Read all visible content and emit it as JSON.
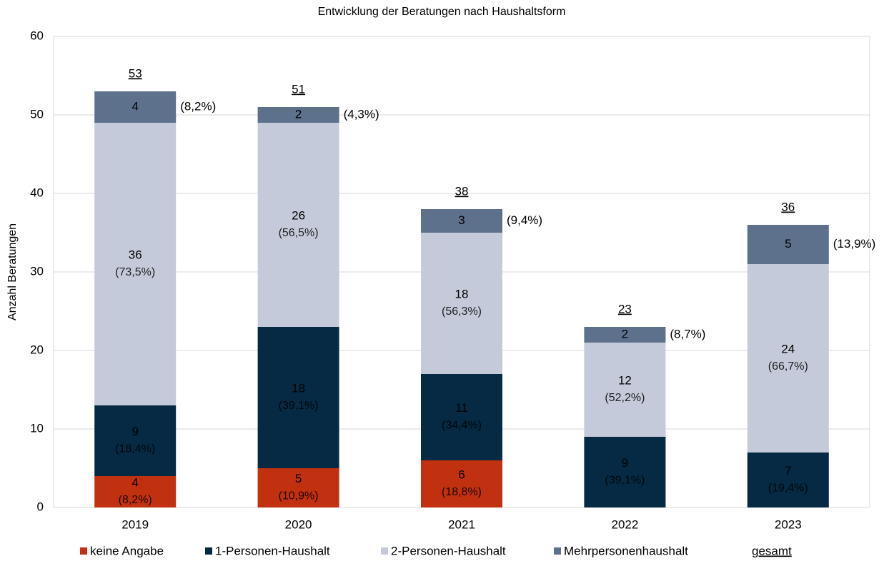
{
  "chart_data": {
    "type": "stacked_bar",
    "title": "Entwicklung der Beratungen nach Haushaltsform",
    "y_label": "Anzahl Beratungen",
    "categories": [
      "2019",
      "2020",
      "2021",
      "2022",
      "2023"
    ],
    "series": [
      {
        "name": "keine Angabe",
        "color": "#c1310f",
        "text_color": "#000000",
        "values": [
          4,
          5,
          6,
          null,
          null
        ],
        "percent_labels": [
          "(8,2%)",
          "(10,9%)",
          "(18,8%)",
          null,
          null
        ]
      },
      {
        "name": "1-Personen-Haushalt",
        "color": "#062a43",
        "text_color": "#ffffff",
        "values": [
          9,
          18,
          11,
          9,
          7
        ],
        "percent_labels": [
          "(18,4%)",
          "(39,1%)",
          "(34,4%)",
          "(39,1%)",
          "(19,4%)"
        ]
      },
      {
        "name": "2-Personen-Haushalt",
        "color": "#c4cad9",
        "text_color": "#000000",
        "values": [
          36,
          26,
          18,
          12,
          24
        ],
        "percent_labels": [
          "(73,5%)",
          "(56,5%)",
          "(56,3%)",
          "(52,2%)",
          "(66,7%)"
        ]
      },
      {
        "name": "Mehrpersonenhaushalt",
        "color": "#5d718d",
        "text_color": "#ffffff",
        "values": [
          4,
          2,
          3,
          2,
          5
        ],
        "percent_labels": [
          "(8,2%)",
          "(4,3%)",
          "(9,4%)",
          "(8,7%)",
          "(13,9%)"
        ]
      }
    ],
    "totals_name": "gesamt",
    "totals": [
      53,
      51,
      38,
      23,
      36
    ],
    "ylim": [
      0,
      60
    ],
    "yticks": [
      0,
      10,
      20,
      30,
      40,
      50,
      60
    ],
    "grid": true
  }
}
